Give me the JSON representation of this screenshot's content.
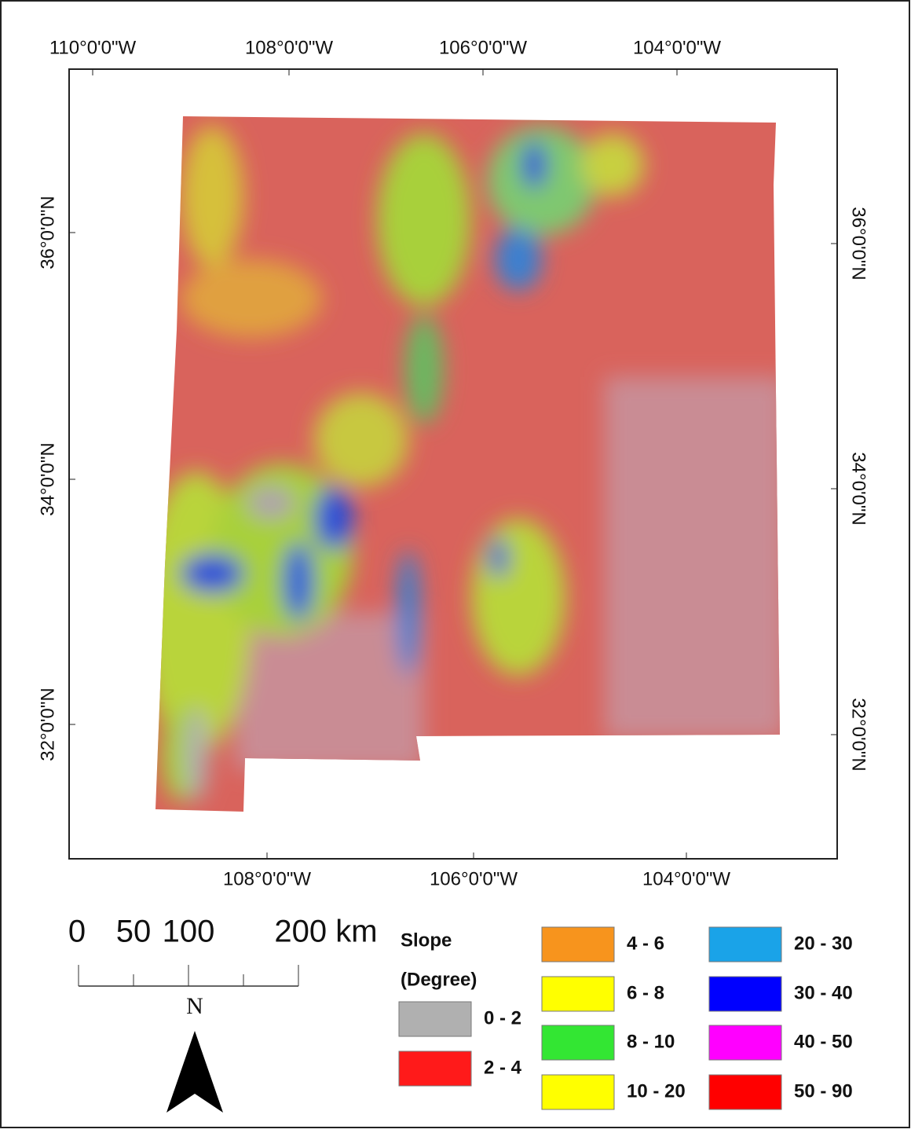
{
  "map": {
    "top_labels": [
      "110°0'0\"W",
      "108°0'0\"W",
      "106°0'0\"W",
      "104°0'0\"W"
    ],
    "bottom_labels": [
      "108°0'0\"W",
      "106°0'0\"W",
      "104°0'0\"W"
    ],
    "left_labels": [
      "36°0'0\"N",
      "34°0'0\"N",
      "32°0'0\"N"
    ],
    "right_labels": [
      "36°0'0\"N",
      "34°0'0\"N",
      "32°0'0\"N"
    ],
    "scale_bar": {
      "labels": [
        "0",
        "50",
        "100",
        "200 km"
      ]
    },
    "north": "N",
    "legend": {
      "title": [
        "Slope",
        "(Degree)"
      ],
      "items": [
        {
          "label": "0 - 2",
          "color": "#b0b0b0"
        },
        {
          "label": "2 - 4",
          "color": "#ff1a1a"
        },
        {
          "label": "4 - 6",
          "color": "#f7941d"
        },
        {
          "label": "6 - 8",
          "color": "#ffff00"
        },
        {
          "label": "8 - 10",
          "color": "#33e633"
        },
        {
          "label": "10 - 20",
          "color": "#ffff00"
        },
        {
          "label": "20 - 30",
          "color": "#1aa3e8"
        },
        {
          "label": "30 - 40",
          "color": "#0000ff"
        },
        {
          "label": "40 - 50",
          "color": "#ff00ff"
        },
        {
          "label": "50 - 90",
          "color": "#ff0000"
        }
      ]
    }
  }
}
